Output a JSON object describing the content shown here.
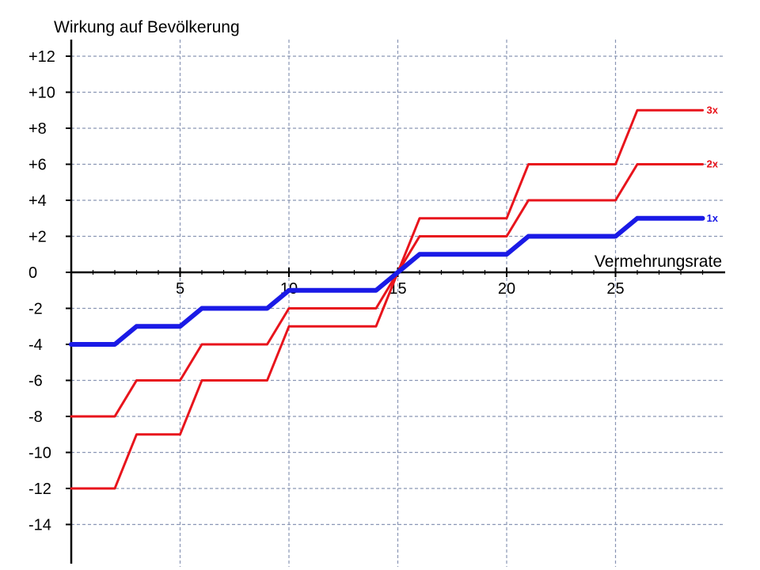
{
  "chart_data": {
    "type": "line",
    "title": "",
    "ylabel": "Wirkung auf Bevölkerung",
    "xlabel": "Vermehrungsrate",
    "xlim": [
      0,
      30
    ],
    "ylim": [
      -16,
      13
    ],
    "grid": true,
    "x_ticks": [
      {
        "value": 5,
        "label": "5"
      },
      {
        "value": 10,
        "label": "10"
      },
      {
        "value": 15,
        "label": "15"
      },
      {
        "value": 20,
        "label": "20"
      },
      {
        "value": 25,
        "label": "25"
      }
    ],
    "y_ticks": [
      {
        "value": 12,
        "label": "+12"
      },
      {
        "value": 10,
        "label": "+10"
      },
      {
        "value": 8,
        "label": "+8"
      },
      {
        "value": 6,
        "label": "+6"
      },
      {
        "value": 4,
        "label": "+4"
      },
      {
        "value": 2,
        "label": "+2"
      },
      {
        "value": 0,
        "label": "0"
      },
      {
        "value": -2,
        "label": "-2"
      },
      {
        "value": -4,
        "label": "-4"
      },
      {
        "value": -6,
        "label": "-6"
      },
      {
        "value": -8,
        "label": "-8"
      },
      {
        "value": -10,
        "label": "-10"
      },
      {
        "value": -12,
        "label": "-12"
      },
      {
        "value": -14,
        "label": "-14"
      }
    ],
    "series": [
      {
        "name": "3x",
        "color": "#e8141c",
        "points": [
          [
            0,
            -12
          ],
          [
            2,
            -12
          ],
          [
            3,
            -9
          ],
          [
            5,
            -9
          ],
          [
            6,
            -6
          ],
          [
            9,
            -6
          ],
          [
            10,
            -3
          ],
          [
            14,
            -3
          ],
          [
            15,
            0
          ],
          [
            16,
            3
          ],
          [
            20,
            3
          ],
          [
            21,
            6
          ],
          [
            25,
            6
          ],
          [
            26,
            9
          ],
          [
            29,
            9
          ]
        ]
      },
      {
        "name": "2x",
        "color": "#e8141c",
        "points": [
          [
            0,
            -8
          ],
          [
            2,
            -8
          ],
          [
            3,
            -6
          ],
          [
            5,
            -6
          ],
          [
            6,
            -4
          ],
          [
            9,
            -4
          ],
          [
            10,
            -2
          ],
          [
            14,
            -2
          ],
          [
            15,
            0
          ],
          [
            16,
            2
          ],
          [
            20,
            2
          ],
          [
            21,
            4
          ],
          [
            25,
            4
          ],
          [
            26,
            6
          ],
          [
            29,
            6
          ]
        ]
      },
      {
        "name": "1x",
        "color": "#1a1ae6",
        "points": [
          [
            0,
            -4
          ],
          [
            2,
            -4
          ],
          [
            3,
            -3
          ],
          [
            5,
            -3
          ],
          [
            6,
            -2
          ],
          [
            9,
            -2
          ],
          [
            10,
            -1
          ],
          [
            14,
            -1
          ],
          [
            15,
            0
          ],
          [
            16,
            1
          ],
          [
            20,
            1
          ],
          [
            21,
            2
          ],
          [
            25,
            2
          ],
          [
            26,
            3
          ],
          [
            29,
            3
          ]
        ]
      }
    ]
  }
}
